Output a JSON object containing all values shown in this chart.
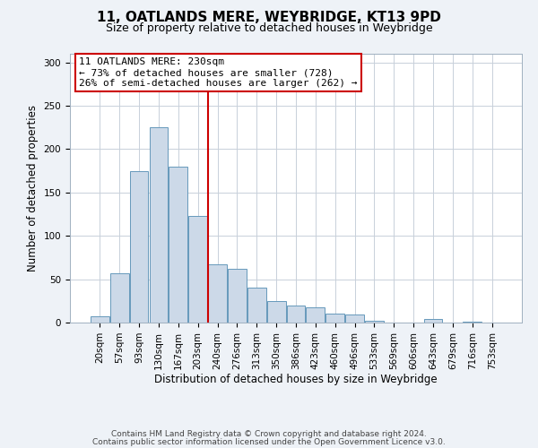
{
  "title": "11, OATLANDS MERE, WEYBRIDGE, KT13 9PD",
  "subtitle": "Size of property relative to detached houses in Weybridge",
  "xlabel": "Distribution of detached houses by size in Weybridge",
  "ylabel": "Number of detached properties",
  "bar_labels": [
    "20sqm",
    "57sqm",
    "93sqm",
    "130sqm",
    "167sqm",
    "203sqm",
    "240sqm",
    "276sqm",
    "313sqm",
    "350sqm",
    "386sqm",
    "423sqm",
    "460sqm",
    "496sqm",
    "533sqm",
    "569sqm",
    "606sqm",
    "643sqm",
    "679sqm",
    "716sqm",
    "753sqm"
  ],
  "bar_values": [
    7,
    57,
    175,
    225,
    180,
    123,
    67,
    62,
    40,
    25,
    20,
    18,
    10,
    9,
    2,
    0,
    0,
    4,
    0,
    1,
    0
  ],
  "bar_color": "#ccd9e8",
  "bar_edgecolor": "#6699bb",
  "vline_color": "#cc0000",
  "vline_pos": 5.5,
  "ylim": [
    0,
    310
  ],
  "yticks": [
    0,
    50,
    100,
    150,
    200,
    250,
    300
  ],
  "annotation_title": "11 OATLANDS MERE: 230sqm",
  "annotation_line1": "← 73% of detached houses are smaller (728)",
  "annotation_line2": "26% of semi-detached houses are larger (262) →",
  "annotation_box_facecolor": "#ffffff",
  "annotation_box_edgecolor": "#cc0000",
  "footer_line1": "Contains HM Land Registry data © Crown copyright and database right 2024.",
  "footer_line2": "Contains public sector information licensed under the Open Government Licence v3.0.",
  "fig_facecolor": "#eef2f7",
  "plot_facecolor": "#ffffff",
  "grid_color": "#c8d0da",
  "title_fontsize": 11,
  "subtitle_fontsize": 9,
  "axis_label_fontsize": 8.5,
  "tick_fontsize": 7.5,
  "annotation_fontsize": 8,
  "footer_fontsize": 6.5
}
